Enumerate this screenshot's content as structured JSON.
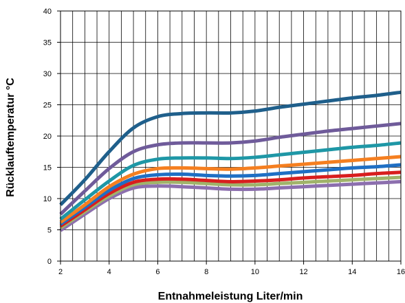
{
  "chart_data": {
    "type": "line",
    "title": "",
    "xlabel": "Entnahmeleistung Liter/min",
    "ylabel": "Rücklauftemperatur °C",
    "xlim": [
      2,
      16
    ],
    "ylim": [
      0,
      40
    ],
    "x_ticks": [
      2,
      4,
      6,
      8,
      10,
      12,
      14,
      16
    ],
    "y_ticks": [
      0,
      5,
      10,
      15,
      20,
      25,
      30,
      35,
      40
    ],
    "x_minor_step": 0.5,
    "grid": true,
    "legend": "none",
    "x": [
      2,
      3,
      4,
      5,
      6,
      7,
      8,
      9,
      10,
      11,
      12,
      13,
      14,
      15,
      16
    ],
    "series": [
      {
        "color": "#1f5f8b",
        "values": [
          9.0,
          13.0,
          17.5,
          21.3,
          23.1,
          23.6,
          23.7,
          23.7,
          24.0,
          24.6,
          25.1,
          25.6,
          26.1,
          26.5,
          27.0
        ]
      },
      {
        "color": "#6f5b9a",
        "values": [
          7.5,
          11.2,
          14.8,
          17.5,
          18.6,
          18.9,
          18.9,
          18.9,
          19.2,
          19.8,
          20.3,
          20.8,
          21.2,
          21.6,
          22.0
        ]
      },
      {
        "color": "#1e97a6",
        "values": [
          6.7,
          9.8,
          12.8,
          15.3,
          16.3,
          16.5,
          16.5,
          16.4,
          16.6,
          17.0,
          17.4,
          17.8,
          18.2,
          18.5,
          18.9
        ]
      },
      {
        "color": "#f57f20",
        "values": [
          6.2,
          9.0,
          11.9,
          13.9,
          14.8,
          14.9,
          14.8,
          14.7,
          14.9,
          15.2,
          15.5,
          15.8,
          16.1,
          16.4,
          16.7
        ]
      },
      {
        "color": "#1f6fc4",
        "values": [
          5.9,
          8.6,
          11.3,
          13.2,
          13.8,
          13.9,
          13.7,
          13.6,
          13.7,
          14.0,
          14.3,
          14.6,
          14.9,
          15.1,
          15.4
        ]
      },
      {
        "color": "#d81e1e",
        "values": [
          5.6,
          8.2,
          10.8,
          12.6,
          13.1,
          13.1,
          12.9,
          12.7,
          12.8,
          13.0,
          13.3,
          13.5,
          13.7,
          14.0,
          14.2
        ]
      },
      {
        "color": "#a0b36a",
        "values": [
          5.3,
          7.9,
          10.4,
          12.2,
          12.6,
          12.6,
          12.4,
          12.2,
          12.2,
          12.4,
          12.6,
          12.8,
          13.0,
          13.2,
          13.4
        ]
      },
      {
        "color": "#8c6fae",
        "values": [
          4.9,
          7.5,
          10.0,
          11.7,
          12.0,
          11.9,
          11.7,
          11.5,
          11.5,
          11.7,
          11.9,
          12.1,
          12.3,
          12.5,
          12.7
        ]
      }
    ]
  }
}
